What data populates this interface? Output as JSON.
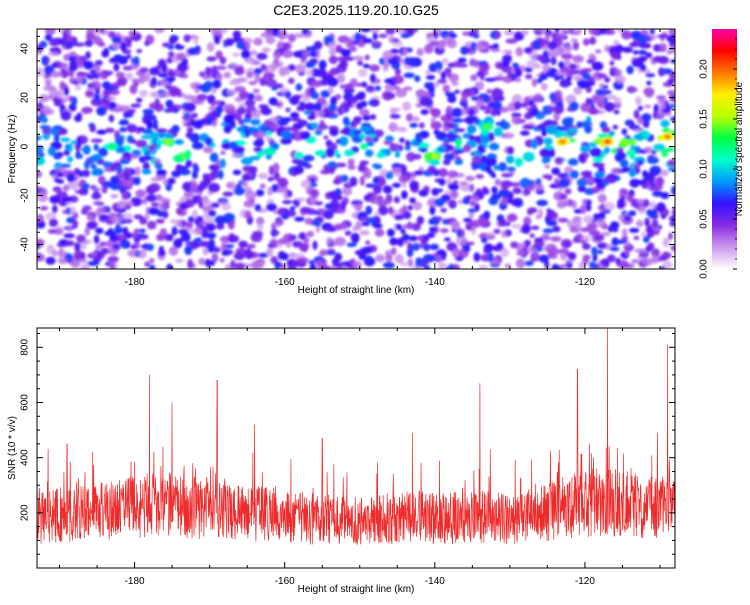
{
  "title": "C2E3.2025.119.20.10.G25",
  "colors": {
    "snr_line": "#ee2a2a",
    "colormap": [
      "#ffffff",
      "#cc99ee",
      "#8a2be2",
      "#3311ff",
      "#0099ff",
      "#00ffcc",
      "#00ff44",
      "#bbff00",
      "#ffee00",
      "#ff7700",
      "#ff0000",
      "#ff00aa"
    ]
  },
  "chart_data": [
    {
      "type": "heatmap",
      "xlabel": "Height of straight line (km)",
      "ylabel": "Frequency (Hz)",
      "xlim": [
        -193,
        -108
      ],
      "ylim": [
        -50,
        48
      ],
      "x_ticks": [
        -180,
        -160,
        -140,
        -120
      ],
      "y_ticks": [
        -40,
        -20,
        0,
        20,
        40
      ],
      "band_center_hz": 0,
      "colorbar": {
        "label": "Normalized spectral amplitude",
        "range": [
          0,
          0.24
        ],
        "ticks": [
          0.0,
          0.05,
          0.1,
          0.15,
          0.2
        ],
        "tick_labels": [
          "0.00",
          "0.05",
          "0.10",
          "0.15",
          "0.20"
        ]
      },
      "hotspots": [
        {
          "x": -183,
          "y": 0,
          "value": 0.13
        },
        {
          "x": -175.5,
          "y": 2,
          "value": 0.15
        },
        {
          "x": -173.5,
          "y": -4,
          "value": 0.14
        },
        {
          "x": -162,
          "y": -2,
          "value": 0.12
        },
        {
          "x": -140,
          "y": -4,
          "value": 0.16
        },
        {
          "x": -133,
          "y": 8,
          "value": 0.14
        },
        {
          "x": -123,
          "y": 2,
          "value": 0.2
        },
        {
          "x": -117,
          "y": 2,
          "value": 0.21
        },
        {
          "x": -109,
          "y": 4,
          "value": 0.2
        }
      ]
    },
    {
      "type": "line",
      "xlabel": "Height of straight line (km)",
      "ylabel": "SNR (10 * v/v)",
      "xlim": [
        -193,
        -108
      ],
      "ylim": [
        0,
        870
      ],
      "x_ticks": [
        -180,
        -160,
        -140,
        -120
      ],
      "y_ticks": [
        200,
        400,
        600,
        800
      ],
      "series": [
        {
          "x": [
            -193,
            -190,
            -187,
            -184,
            -181,
            -178,
            -175,
            -172,
            -169,
            -166,
            -163,
            -160,
            -157,
            -154,
            -151,
            -148,
            -145,
            -142,
            -139,
            -136,
            -133,
            -130,
            -127,
            -124,
            -121,
            -118,
            -115,
            -112,
            -109,
            -108
          ],
          "values": [
            180,
            190,
            195,
            205,
            215,
            235,
            230,
            220,
            210,
            205,
            195,
            190,
            180,
            175,
            170,
            175,
            180,
            190,
            185,
            180,
            185,
            175,
            185,
            210,
            230,
            240,
            235,
            220,
            230,
            225
          ],
          "peak_x": [
            -189,
            -178,
            -175,
            -169,
            -164,
            -155,
            -143,
            -134,
            -121,
            -117,
            -109
          ],
          "peak_values": [
            450,
            700,
            600,
            680,
            520,
            470,
            490,
            670,
            720,
            870,
            810
          ]
        }
      ]
    }
  ]
}
